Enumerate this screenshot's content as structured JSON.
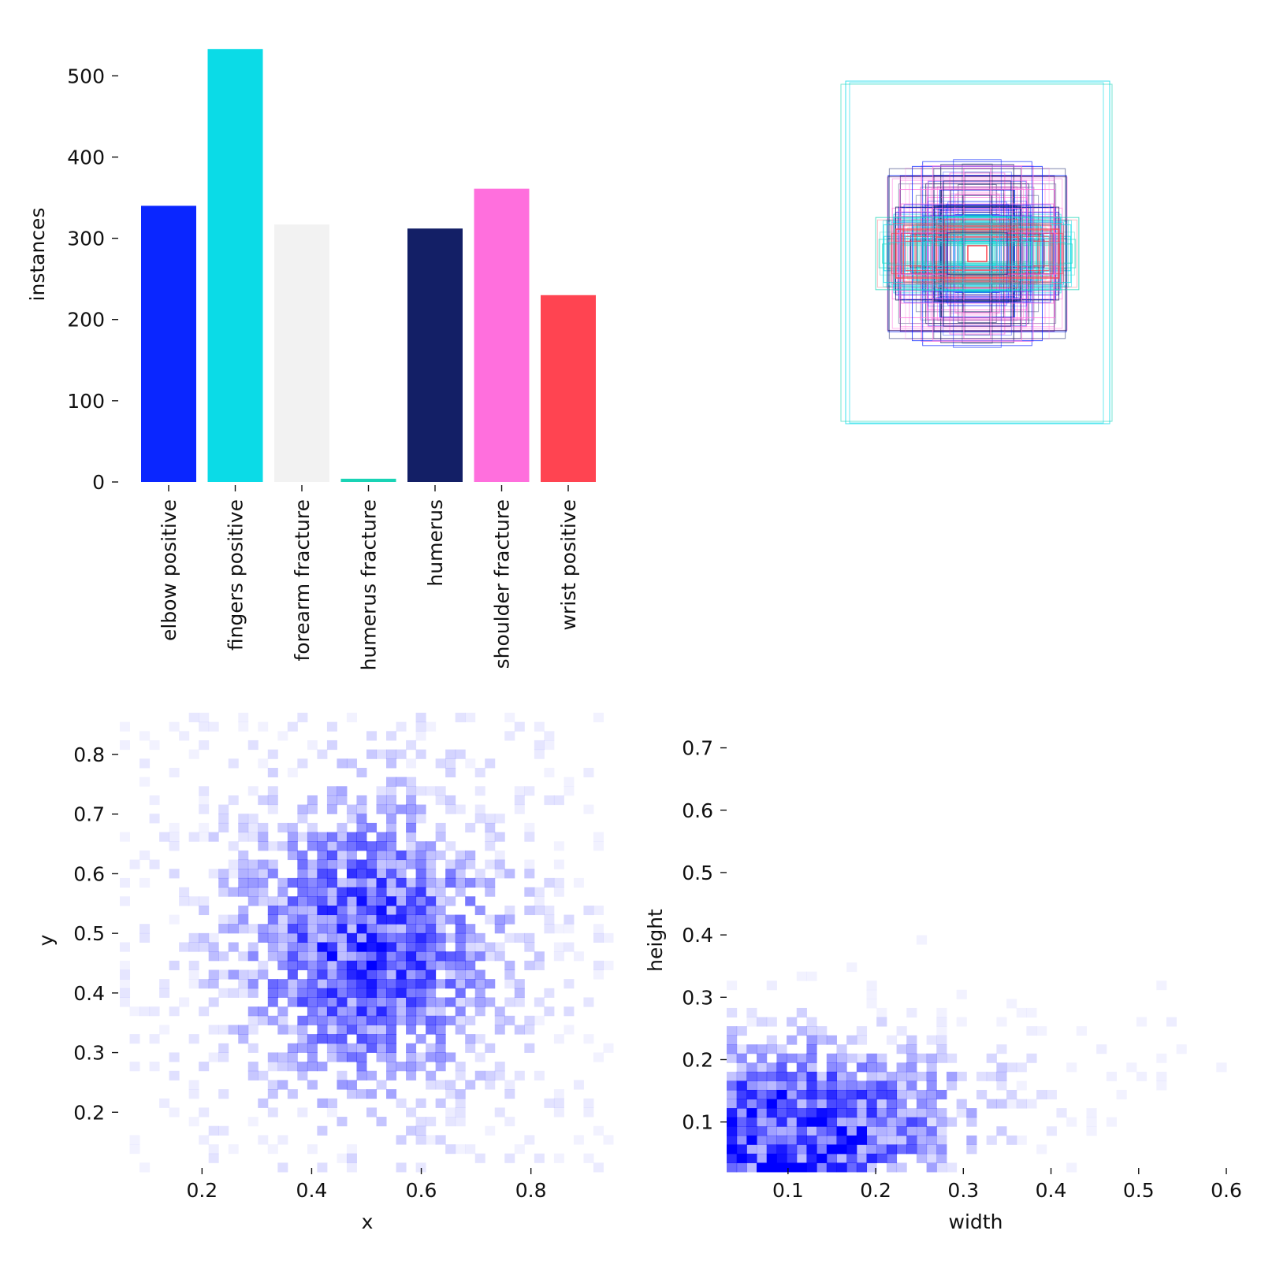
{
  "chart_data": [
    {
      "type": "bar",
      "ylabel": "instances",
      "ylim": [
        0,
        540
      ],
      "yticks": [
        0,
        100,
        200,
        300,
        400,
        500
      ],
      "categories": [
        "elbow positive",
        "fingers positive",
        "forearm fracture",
        "humerus fracture",
        "humerus",
        "shoulder fracture",
        "wrist positive"
      ],
      "values": [
        340,
        533,
        317,
        4,
        312,
        361,
        230
      ],
      "colors": [
        "#0A26FF",
        "#0BDBE7",
        "#F2F2F2",
        "#19D3B5",
        "#131F66",
        "#FF6FDD",
        "#FF4451"
      ]
    },
    {
      "type": "boxes",
      "description_colors": [
        "#0A26FF",
        "#0BDBE7",
        "#19D3B5",
        "#131F66",
        "#FF6FDD",
        "#FF4451"
      ]
    },
    {
      "type": "heatmap",
      "xlabel": "x",
      "ylabel": "y",
      "xlim": [
        0.05,
        0.95
      ],
      "ylim": [
        0.1,
        0.87
      ],
      "xticks": [
        0.2,
        0.4,
        0.6,
        0.8
      ],
      "yticks": [
        0.2,
        0.3,
        0.4,
        0.5,
        0.6,
        0.7,
        0.8
      ],
      "center": [
        0.5,
        0.48
      ],
      "spread": [
        0.16,
        0.16
      ],
      "color": "#0000FF"
    },
    {
      "type": "heatmap",
      "xlabel": "width",
      "ylabel": "height",
      "xlim": [
        0.03,
        0.6
      ],
      "ylim": [
        0.02,
        0.75
      ],
      "xticks": [
        0.1,
        0.2,
        0.3,
        0.4,
        0.5,
        0.6
      ],
      "yticks": [
        0.1,
        0.2,
        0.3,
        0.4,
        0.5,
        0.6,
        0.7
      ],
      "center": [
        0.1,
        0.09
      ],
      "spread": [
        0.12,
        0.1
      ],
      "color": "#0000FF"
    }
  ]
}
